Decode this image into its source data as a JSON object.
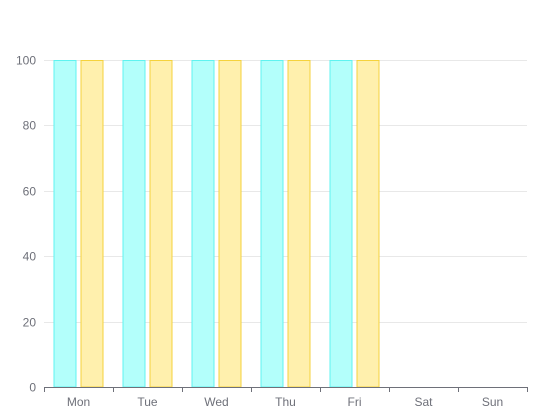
{
  "chart_data": {
    "type": "bar",
    "categories": [
      "Mon",
      "Tue",
      "Wed",
      "Thu",
      "Fri",
      "Sat",
      "Sun"
    ],
    "series": [
      {
        "values": [
          100,
          100,
          100,
          100,
          100,
          null,
          null
        ],
        "color": "#5ff3f0",
        "fill": "#b3fffb"
      },
      {
        "values": [
          100,
          100,
          100,
          100,
          100,
          null,
          null
        ],
        "color": "#f5d23c",
        "fill": "#fff0ad"
      }
    ],
    "yticks": [
      0,
      20,
      40,
      60,
      80,
      100
    ],
    "ylim": [
      0,
      100
    ],
    "title": "",
    "xlabel": "",
    "ylabel": "",
    "grid": true
  },
  "colors": {
    "grid": "#e8e8e8",
    "axis": "#6e7079",
    "label": "#6e7079"
  }
}
